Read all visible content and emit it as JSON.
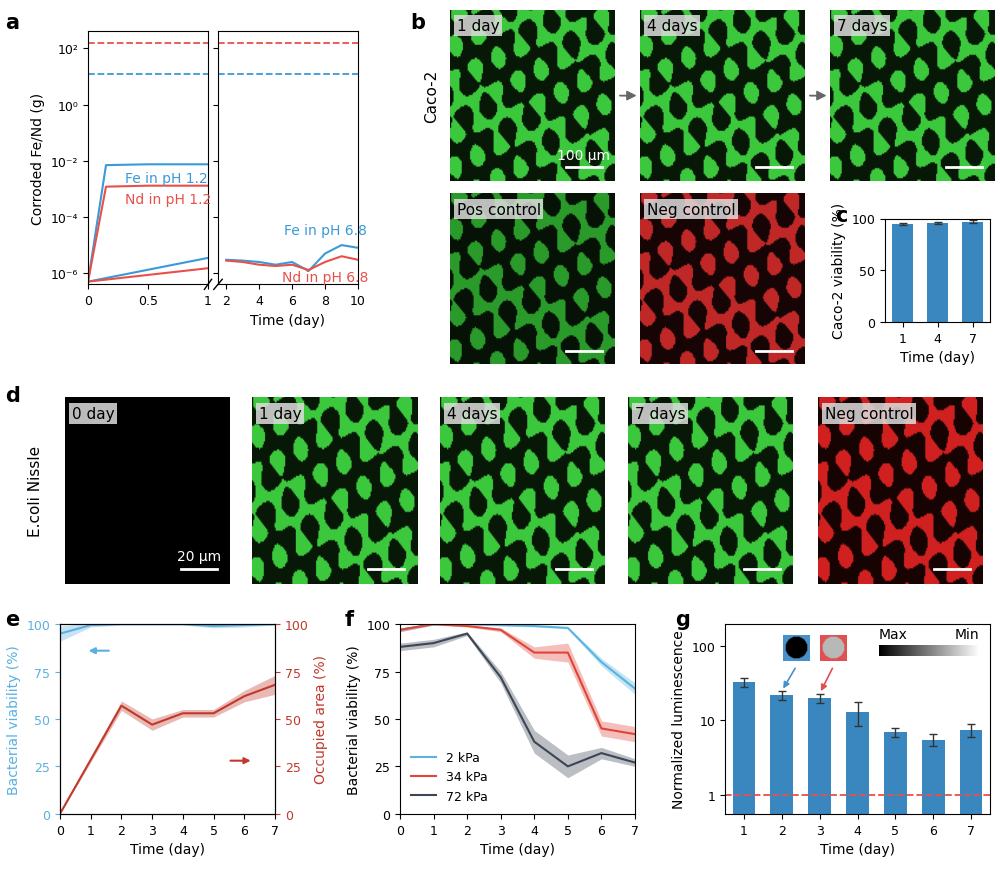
{
  "chart_data": [
    {
      "type": "line",
      "title": "a",
      "log": "y",
      "ylabel": "Corroded Fe/Nd (g)",
      "xlim": [
        0,
        1
      ],
      "xticks": [
        0,
        0.5,
        1
      ],
      "ylim": [
        4e-07,
        400
      ],
      "yticks": [
        {
          "value": 1e-06,
          "label": "10⁻⁶"
        },
        {
          "value": 0.0001,
          "label": "10⁻⁴"
        },
        {
          "value": 0.01,
          "label": "10⁻²"
        },
        {
          "value": 1,
          "label": "10⁰"
        },
        {
          "value": 100,
          "label": "10²"
        }
      ],
      "reference_lines": [
        {
          "value": 12,
          "color": "#3a9ad9",
          "line_style": "dashed"
        },
        {
          "value": 150,
          "color": "#e8514a",
          "line_style": "dashed"
        }
      ],
      "series": [
        {
          "name": "Fe in pH 1.2",
          "color": "#3a9ad9",
          "x": [
            0,
            0.15,
            0.5,
            1
          ],
          "values": [
            5e-07,
            0.007,
            0.0075,
            0.0075
          ]
        },
        {
          "name": "Nd in pH 1.2",
          "color": "#e8514a",
          "x": [
            0,
            0.15,
            0.5,
            1
          ],
          "values": [
            5e-07,
            0.0012,
            0.0013,
            0.0013
          ]
        },
        {
          "color": "#3a9ad9",
          "x": [
            0,
            1
          ],
          "values": [
            5e-07,
            3.5e-06
          ]
        },
        {
          "color": "#e8514a",
          "x": [
            0,
            1
          ],
          "values": [
            5e-07,
            1.5e-06
          ]
        }
      ]
    },
    {
      "type": "line",
      "log": "y",
      "tick_labels": "x",
      "xlabel": "Time (day)",
      "xlim": [
        1.5,
        10
      ],
      "xticks": [
        2,
        4,
        6,
        8,
        10
      ],
      "ylim": [
        4e-07,
        400
      ],
      "yticks": [
        {
          "value": 1e-06,
          "label": "10⁻⁶"
        },
        {
          "value": 0.0001,
          "label": "10⁻⁴"
        },
        {
          "value": 0.01,
          "label": "10⁻²"
        },
        {
          "value": 1,
          "label": "10⁰"
        },
        {
          "value": 100,
          "label": "10²"
        }
      ],
      "reference_lines": [
        {
          "value": 12,
          "color": "#3a9ad9",
          "line_style": "dashed"
        },
        {
          "value": 150,
          "color": "#e8514a",
          "line_style": "dashed"
        }
      ],
      "series": [
        {
          "name": "Fe in pH 6.8",
          "color": "#3a9ad9",
          "x": [
            2,
            3,
            4,
            5,
            6,
            7,
            8,
            9,
            10
          ],
          "values": [
            3e-06,
            2.8e-06,
            2.5e-06,
            2e-06,
            2.5e-06,
            1.2e-06,
            5e-06,
            1e-05,
            8e-06
          ]
        },
        {
          "name": "Nd in pH 6.8",
          "color": "#e8514a",
          "x": [
            2,
            3,
            4,
            5,
            6,
            7,
            8,
            9,
            10
          ],
          "values": [
            2.8e-06,
            2.5e-06,
            2e-06,
            1.8e-06,
            2e-06,
            1.3e-06,
            2.5e-06,
            4e-06,
            3e-06
          ]
        }
      ]
    },
    {
      "type": "bar",
      "title": "c",
      "categories": [
        "1",
        "4",
        "7"
      ],
      "values": [
        95,
        96,
        97
      ],
      "errors": [
        0.8,
        1,
        1.5
      ],
      "color": "#3a87c0",
      "xlabel": "Time (day)",
      "ylabel": "Caco-2 viability (%)",
      "ylim": [
        0,
        100
      ],
      "yticks": [
        0,
        50,
        100
      ]
    },
    {
      "type": "line",
      "title": "e",
      "xlabel": "Time (day)",
      "ylabel": "Bacterial viability (%)",
      "y2label": "Occupied area (%)",
      "xlim": [
        0,
        7
      ],
      "xticks": [
        0,
        1,
        2,
        3,
        4,
        5,
        6,
        7
      ],
      "ylim": [
        0,
        100
      ],
      "yticks": [
        0,
        25,
        50,
        75,
        100
      ],
      "y2lim": [
        0,
        100
      ],
      "y2ticks": [
        0,
        25,
        50,
        75,
        100
      ],
      "series": [
        {
          "color": "#5ab0e0",
          "x": [
            0,
            1,
            2,
            3,
            4,
            5,
            6,
            7
          ],
          "values": [
            95,
            99.5,
            100,
            100,
            100,
            99,
            99.5,
            100
          ],
          "errors": [
            4,
            1,
            0.5,
            0.5,
            0.5,
            1,
            1,
            0.5
          ]
        },
        {
          "color": "#c0392b",
          "axis": "y2",
          "x": [
            0,
            2,
            3,
            4,
            5,
            6,
            7
          ],
          "values": [
            0,
            57,
            47,
            53,
            53,
            62,
            68
          ],
          "errors": [
            0,
            2.5,
            3,
            2,
            2,
            3,
            5
          ]
        }
      ]
    },
    {
      "type": "line",
      "title": "f",
      "xlabel": "Time (day)",
      "ylabel": "Bacterial viability (%)",
      "legend": "lower left",
      "xlim": [
        0,
        7
      ],
      "xticks": [
        0,
        1,
        2,
        3,
        4,
        5,
        6,
        7
      ],
      "ylim": [
        0,
        100
      ],
      "yticks": [
        0,
        25,
        50,
        75,
        100
      ],
      "series": [
        {
          "name": "2 kPa",
          "color": "#5ab4e0",
          "x": [
            0,
            1,
            2,
            3,
            4,
            5,
            6,
            7
          ],
          "values": [
            97,
            100,
            100,
            99.5,
            99,
            98,
            80,
            66
          ],
          "errors": [
            1,
            0.5,
            0.5,
            0.5,
            0.5,
            0.5,
            2,
            3
          ]
        },
        {
          "name": "34 kPa",
          "color": "#e0453a",
          "x": [
            0,
            1,
            2,
            3,
            4,
            5,
            6,
            7
          ],
          "values": [
            97,
            100,
            99,
            97,
            85,
            85,
            45,
            42
          ],
          "errors": [
            1,
            0.5,
            0.5,
            1,
            3,
            5,
            4,
            4
          ]
        },
        {
          "name": "72 kPa",
          "color": "#3c4655",
          "x": [
            0,
            1,
            2,
            3,
            4,
            5,
            6,
            7
          ],
          "values": [
            88,
            90,
            95,
            72,
            38,
            25,
            32,
            27
          ],
          "errors": [
            2,
            2,
            1,
            3,
            6,
            6,
            3,
            2
          ]
        }
      ]
    },
    {
      "type": "bar",
      "title": "g",
      "log": "y",
      "categories": [
        "1",
        "2",
        "3",
        "4",
        "5",
        "6",
        "7"
      ],
      "values": [
        33,
        22,
        20,
        13,
        7,
        5.5,
        7.5
      ],
      "errors": [
        5,
        3,
        3,
        4.5,
        1,
        1,
        1.5
      ],
      "color": "#3a87c0",
      "xlabel": "Time (day)",
      "ylabel": "Normalized luminescence",
      "ylim": [
        0.55,
        200
      ],
      "yticks": [
        1,
        10,
        100
      ],
      "reference_lines": [
        {
          "value": 1,
          "color": "#e8514a",
          "line_style": "dashed"
        }
      ],
      "annotations": [
        "Max",
        "Min"
      ]
    }
  ],
  "images": [
    {
      "title": "b",
      "row_label": "Caco-2",
      "scale_bar": "100 μm",
      "tiles": [
        {
          "label": "1 day",
          "color": "#3cc83c"
        },
        {
          "label": "4 days",
          "color": "#3cc83c"
        },
        {
          "label": "7 days",
          "color": "#3cc83c"
        },
        {
          "label": "Pos control",
          "color": "#2a9a2a"
        },
        {
          "label": "Neg control",
          "color": "#c02828"
        }
      ]
    },
    {
      "title": "d",
      "row_label": "E.coli Nissle",
      "scale_bar": "20 μm",
      "tiles": [
        {
          "label": "0 day",
          "color": "#000000"
        },
        {
          "label": "1 day",
          "color": "#3cc83c"
        },
        {
          "label": "4 days",
          "color": "#3cc83c"
        },
        {
          "label": "7 days",
          "color": "#3cc83c"
        },
        {
          "label": "Neg control",
          "color": "#d02020"
        }
      ]
    }
  ]
}
